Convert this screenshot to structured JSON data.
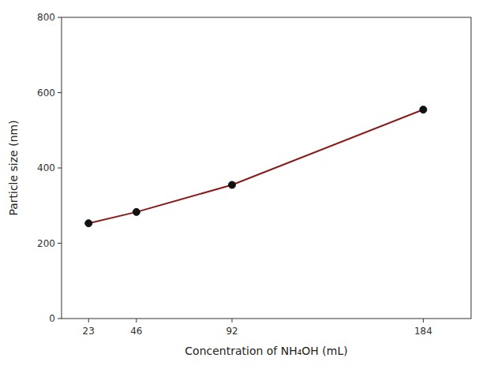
{
  "chart_data": {
    "type": "line",
    "xlabel": "Concentration of NH₄OH (mL)",
    "ylabel": "Particle size (nm)",
    "x": [
      23,
      46,
      92,
      184
    ],
    "values": [
      253,
      283,
      355,
      555
    ],
    "color": "#8B1A1A",
    "marker": "circle",
    "xlim": [
      10,
      207
    ],
    "ylim": [
      0,
      800
    ],
    "xticks": [
      23,
      46,
      92,
      184
    ],
    "yticks": [
      0,
      200,
      400,
      600,
      800
    ],
    "grid": false
  }
}
